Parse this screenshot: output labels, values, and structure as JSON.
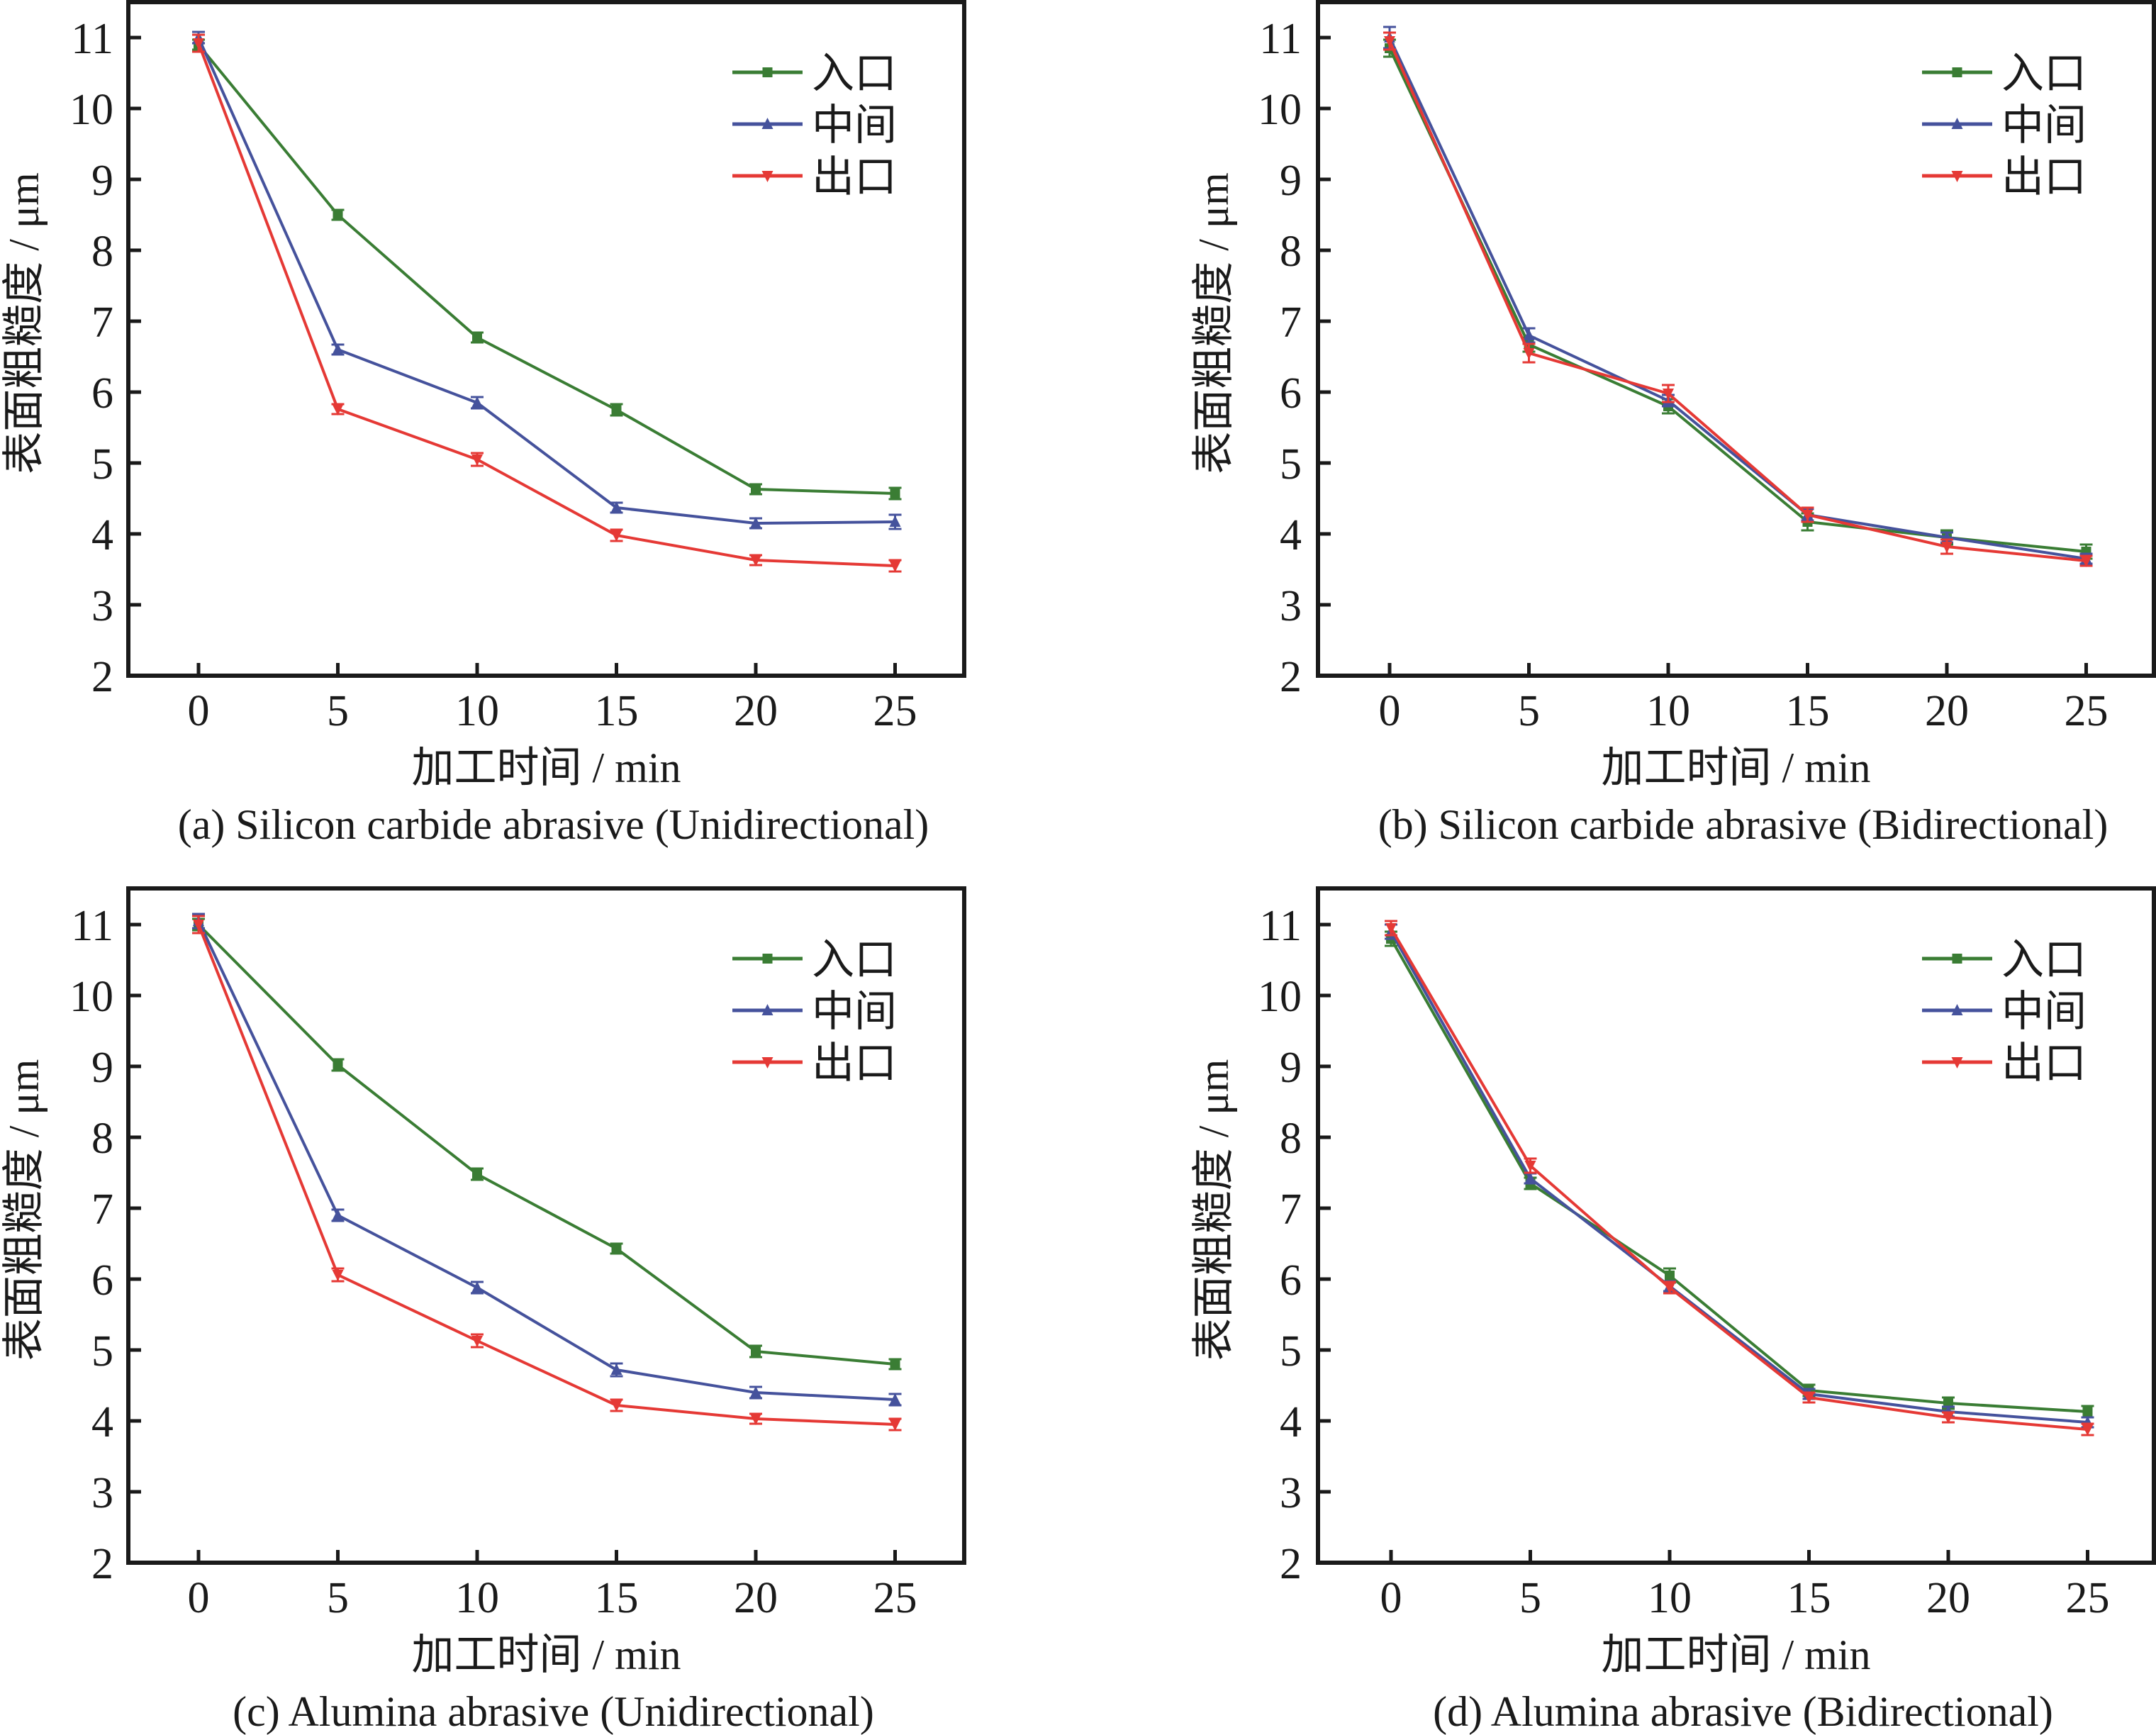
{
  "figure": {
    "panel_count": 4
  },
  "chart_data": [
    {
      "type": "line",
      "panel": "a",
      "caption": "(a) Silicon carbide abrasive (Unidirectional)",
      "xlabel": "加工时间 / min",
      "ylabel": "表面粗糙度 / μm",
      "x": [
        0,
        5,
        10,
        15,
        20,
        25
      ],
      "xticks": [
        "0",
        "5",
        "10",
        "15",
        "20",
        "25"
      ],
      "yticks": [
        "2",
        "3",
        "4",
        "5",
        "6",
        "7",
        "8",
        "9",
        "10",
        "11"
      ],
      "xlim": [
        -2.5,
        27.5
      ],
      "ylim": [
        2,
        11.5
      ],
      "grid": false,
      "legend_position": "top-right",
      "error_bars": true,
      "series": [
        {
          "name": "入口",
          "color": "#3a7d34",
          "marker": "square",
          "values": [
            10.9,
            8.5,
            6.77,
            5.75,
            4.63,
            4.57
          ],
          "errors": [
            0.07,
            0.07,
            0.07,
            0.08,
            0.07,
            0.08
          ]
        },
        {
          "name": "中间",
          "color": "#45529c",
          "marker": "triangle-up",
          "values": [
            11.0,
            6.6,
            5.85,
            4.37,
            4.15,
            4.17
          ],
          "errors": [
            0.08,
            0.07,
            0.08,
            0.07,
            0.07,
            0.1
          ]
        },
        {
          "name": "出口",
          "color": "#e53935",
          "marker": "triangle-down",
          "values": [
            10.92,
            5.76,
            5.05,
            3.98,
            3.63,
            3.55
          ],
          "errors": [
            0.12,
            0.07,
            0.09,
            0.08,
            0.07,
            0.08
          ]
        }
      ]
    },
    {
      "type": "line",
      "panel": "b",
      "caption": "(b) Silicon carbide abrasive (Bidirectional)",
      "xlabel": "加工时间 / min",
      "ylabel": "表面粗糙度 / μm",
      "x": [
        0,
        5,
        10,
        15,
        20,
        25
      ],
      "xticks": [
        "0",
        "5",
        "10",
        "15",
        "20",
        "25"
      ],
      "yticks": [
        "2",
        "3",
        "4",
        "5",
        "6",
        "7",
        "8",
        "9",
        "10",
        "11"
      ],
      "xlim": [
        -2.5,
        27.5
      ],
      "ylim": [
        2,
        11.5
      ],
      "grid": false,
      "legend_position": "top-right",
      "error_bars": true,
      "series": [
        {
          "name": "入口",
          "color": "#3a7d34",
          "marker": "square",
          "values": [
            10.85,
            6.67,
            5.8,
            4.17,
            3.95,
            3.75
          ],
          "errors": [
            0.12,
            0.1,
            0.1,
            0.12,
            0.1,
            0.1
          ]
        },
        {
          "name": "中间",
          "color": "#45529c",
          "marker": "triangle-up",
          "values": [
            11.0,
            6.8,
            5.88,
            4.27,
            3.95,
            3.65
          ],
          "errors": [
            0.15,
            0.1,
            0.08,
            0.08,
            0.07,
            0.07
          ]
        },
        {
          "name": "出口",
          "color": "#e53935",
          "marker": "triangle-down",
          "values": [
            10.95,
            6.55,
            5.98,
            4.27,
            3.82,
            3.62
          ],
          "errors": [
            0.12,
            0.13,
            0.12,
            0.1,
            0.1,
            0.07
          ]
        }
      ]
    },
    {
      "type": "line",
      "panel": "c",
      "caption": "(c) Alumina abrasive (Unidirectional)",
      "xlabel": "加工时间 / min",
      "ylabel": "表面粗糙度 / μm",
      "x": [
        0,
        5,
        10,
        15,
        20,
        25
      ],
      "xticks": [
        "0",
        "5",
        "10",
        "15",
        "20",
        "25"
      ],
      "yticks": [
        "2",
        "3",
        "4",
        "5",
        "6",
        "7",
        "8",
        "9",
        "10",
        "11"
      ],
      "xlim": [
        -2.5,
        27.5
      ],
      "ylim": [
        2,
        11.5
      ],
      "grid": false,
      "legend_position": "top-right",
      "error_bars": true,
      "series": [
        {
          "name": "入口",
          "color": "#3a7d34",
          "marker": "square",
          "values": [
            11.0,
            9.02,
            7.48,
            6.43,
            4.98,
            4.8
          ],
          "errors": [
            0.08,
            0.08,
            0.08,
            0.07,
            0.08,
            0.07
          ]
        },
        {
          "name": "中间",
          "color": "#45529c",
          "marker": "triangle-up",
          "values": [
            11.05,
            6.9,
            5.88,
            4.72,
            4.4,
            4.3
          ],
          "errors": [
            0.1,
            0.08,
            0.08,
            0.09,
            0.08,
            0.08
          ]
        },
        {
          "name": "出口",
          "color": "#e53935",
          "marker": "triangle-down",
          "values": [
            11.0,
            6.06,
            5.13,
            4.22,
            4.03,
            3.95
          ],
          "errors": [
            0.12,
            0.09,
            0.09,
            0.08,
            0.07,
            0.08
          ]
        }
      ]
    },
    {
      "type": "line",
      "panel": "d",
      "caption": "(d) Alumina abrasive (Bidirectional)",
      "xlabel": "加工时间 / min",
      "ylabel": "表面粗糙度 / μm",
      "x": [
        0,
        5,
        10,
        15,
        20,
        25
      ],
      "xticks": [
        "0",
        "5",
        "10",
        "15",
        "20",
        "25"
      ],
      "yticks": [
        "2",
        "3",
        "4",
        "5",
        "6",
        "7",
        "8",
        "9",
        "10",
        "11"
      ],
      "xlim": [
        -2.5,
        27.5
      ],
      "ylim": [
        2,
        11.5
      ],
      "grid": false,
      "legend_position": "top-right",
      "error_bars": true,
      "series": [
        {
          "name": "入口",
          "color": "#3a7d34",
          "marker": "square",
          "values": [
            10.8,
            7.35,
            6.05,
            4.43,
            4.25,
            4.13
          ],
          "errors": [
            0.1,
            0.08,
            0.1,
            0.08,
            0.08,
            0.08
          ]
        },
        {
          "name": "中间",
          "color": "#45529c",
          "marker": "triangle-up",
          "values": [
            10.9,
            7.42,
            5.9,
            4.38,
            4.13,
            3.98
          ],
          "errors": [
            0.1,
            0.07,
            0.07,
            0.07,
            0.07,
            0.07
          ]
        },
        {
          "name": "出口",
          "color": "#e53935",
          "marker": "triangle-down",
          "values": [
            10.95,
            7.6,
            5.88,
            4.33,
            4.05,
            3.88
          ],
          "errors": [
            0.1,
            0.1,
            0.08,
            0.07,
            0.07,
            0.08
          ]
        }
      ]
    }
  ]
}
